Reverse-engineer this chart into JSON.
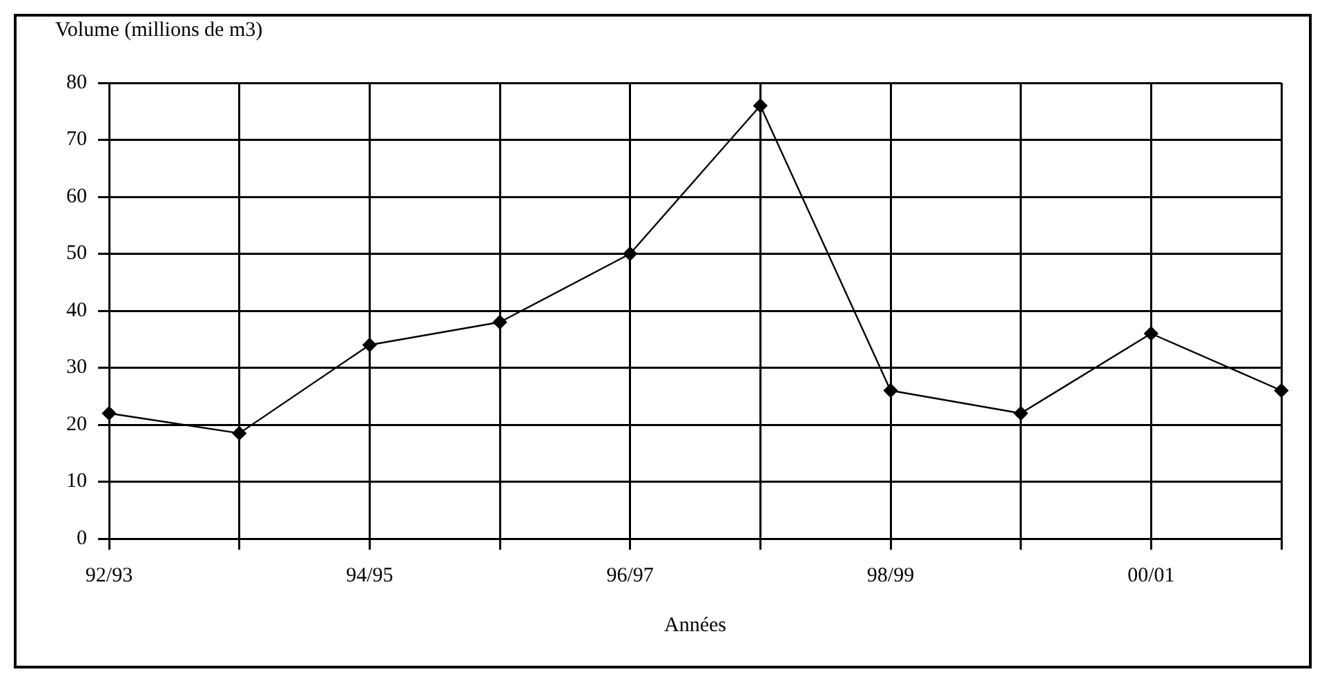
{
  "chart_data": {
    "type": "line",
    "ylabel": "Volume (millions de m3)",
    "xlabel": "Années",
    "categories": [
      "92/93",
      null,
      "94/95",
      null,
      "96/97",
      null,
      "98/99",
      null,
      "00/01",
      null
    ],
    "series": [
      {
        "color": "#000000",
        "values": [
          22,
          18.5,
          34,
          38,
          50,
          76,
          26,
          22,
          36,
          26
        ]
      }
    ],
    "ylim": [
      0,
      80
    ],
    "yticks": [
      0,
      10,
      20,
      30,
      40,
      50,
      60,
      70,
      80
    ],
    "grid": true,
    "legend": false,
    "marker": "diamond",
    "line_style": "solid"
  }
}
